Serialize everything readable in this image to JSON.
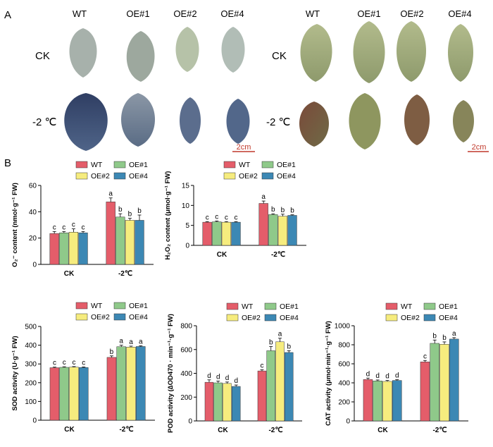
{
  "panel_a": {
    "label": "A",
    "genotypes": [
      "WT",
      "OE#1",
      "OE#2",
      "OE#4"
    ],
    "rows": [
      "CK",
      "-2 ℃"
    ],
    "scale_bar": "2cm"
  },
  "panel_b": {
    "label": "B",
    "legend": [
      "WT",
      "OE#1",
      "OE#2",
      "OE#4"
    ]
  },
  "colors": {
    "WT": "#e45d6a",
    "OE#1": "#8fc98a",
    "OE#2": "#f6ec7e",
    "OE#4": "#3c88b4",
    "stain_blue": "#3c4b73",
    "leaf_green": "#a3ad7f",
    "leaf_pale": "#b8c4b0",
    "scale_red": "#c0392b"
  },
  "chart_data": [
    {
      "id": "o2",
      "type": "bar",
      "ylabel": "O₂⁻ content (nmol·g⁻¹ FW)",
      "categories": [
        "CK",
        "-2℃"
      ],
      "ylim": [
        0,
        60
      ],
      "yticks": [
        0,
        20,
        40,
        60
      ],
      "series": [
        {
          "name": "WT",
          "values": [
            23.5,
            47.5
          ],
          "errors": [
            1.5,
            3.0
          ],
          "letters": [
            "c",
            "a"
          ]
        },
        {
          "name": "OE#1",
          "values": [
            24.0,
            36.0
          ],
          "errors": [
            1.0,
            2.5
          ],
          "letters": [
            "c",
            "b"
          ]
        },
        {
          "name": "OE#2",
          "values": [
            24.5,
            33.5
          ],
          "errors": [
            2.5,
            1.5
          ],
          "letters": [
            "c",
            "b"
          ]
        },
        {
          "name": "OE#4",
          "values": [
            24.0,
            33.5
          ],
          "errors": [
            1.0,
            4.0
          ],
          "letters": [
            "c",
            "b"
          ]
        }
      ]
    },
    {
      "id": "h2o2",
      "type": "bar",
      "ylabel": "H₂O₂ content (μmol·g⁻¹ FW)",
      "categories": [
        "CK",
        "-2℃"
      ],
      "ylim": [
        0,
        15
      ],
      "yticks": [
        0,
        5,
        10,
        15
      ],
      "series": [
        {
          "name": "WT",
          "values": [
            5.8,
            10.5
          ],
          "errors": [
            0.15,
            0.6
          ],
          "letters": [
            "c",
            "a"
          ]
        },
        {
          "name": "OE#1",
          "values": [
            5.9,
            7.7
          ],
          "errors": [
            0.2,
            0.2
          ],
          "letters": [
            "c",
            "b"
          ]
        },
        {
          "name": "OE#2",
          "values": [
            5.8,
            7.3
          ],
          "errors": [
            0.15,
            0.5
          ],
          "letters": [
            "c",
            "b"
          ]
        },
        {
          "name": "OE#4",
          "values": [
            5.8,
            7.5
          ],
          "errors": [
            0.15,
            0.15
          ],
          "letters": [
            "c",
            "b"
          ]
        }
      ]
    },
    {
      "id": "sod",
      "type": "bar",
      "ylabel": "SOD activity (U·g⁻¹ FW)",
      "categories": [
        "CK",
        "-2℃"
      ],
      "ylim": [
        0,
        500
      ],
      "yticks": [
        0,
        100,
        200,
        300,
        400,
        500
      ],
      "series": [
        {
          "name": "WT",
          "values": [
            280,
            335
          ],
          "errors": [
            3,
            8
          ],
          "letters": [
            "c",
            "b"
          ]
        },
        {
          "name": "OE#1",
          "values": [
            282,
            392
          ],
          "errors": [
            3,
            8
          ],
          "letters": [
            "c",
            "a"
          ]
        },
        {
          "name": "OE#2",
          "values": [
            283,
            390
          ],
          "errors": [
            3,
            5
          ],
          "letters": [
            "c",
            "a"
          ]
        },
        {
          "name": "OE#4",
          "values": [
            281,
            393
          ],
          "errors": [
            3,
            4
          ],
          "letters": [
            "c",
            "a"
          ]
        }
      ]
    },
    {
      "id": "pod",
      "type": "bar",
      "ylabel": "POD activity (∆OD470 · min⁻¹·g⁻¹ FW)",
      "categories": [
        "CK",
        "-2℃"
      ],
      "ylim": [
        0,
        800
      ],
      "yticks": [
        0,
        200,
        400,
        600,
        800
      ],
      "series": [
        {
          "name": "WT",
          "values": [
            325,
            420
          ],
          "errors": [
            20,
            10
          ],
          "letters": [
            "d",
            "c"
          ]
        },
        {
          "name": "OE#1",
          "values": [
            320,
            590
          ],
          "errors": [
            15,
            35
          ],
          "letters": [
            "d",
            "b"
          ]
        },
        {
          "name": "OE#2",
          "values": [
            315,
            665
          ],
          "errors": [
            12,
            30
          ],
          "letters": [
            "d",
            "a"
          ]
        },
        {
          "name": "OE#4",
          "values": [
            290,
            575
          ],
          "errors": [
            12,
            15
          ],
          "letters": [
            "d",
            "b"
          ]
        }
      ]
    },
    {
      "id": "cat",
      "type": "bar",
      "ylabel": "CAT activity (μmol·min⁻¹·g⁻¹ FW)",
      "categories": [
        "CK",
        "-2℃"
      ],
      "ylim": [
        0,
        1000
      ],
      "yticks": [
        0,
        200,
        400,
        600,
        800,
        1000
      ],
      "series": [
        {
          "name": "WT",
          "values": [
            435,
            620
          ],
          "errors": [
            15,
            15
          ],
          "letters": [
            "d",
            "c"
          ]
        },
        {
          "name": "OE#1",
          "values": [
            420,
            815
          ],
          "errors": [
            10,
            35
          ],
          "letters": [
            "d",
            "b"
          ]
        },
        {
          "name": "OE#2",
          "values": [
            415,
            805
          ],
          "errors": [
            10,
            25
          ],
          "letters": [
            "d",
            "b"
          ]
        },
        {
          "name": "OE#4",
          "values": [
            425,
            860
          ],
          "errors": [
            8,
            15
          ],
          "letters": [
            "d",
            "a"
          ]
        }
      ]
    }
  ]
}
